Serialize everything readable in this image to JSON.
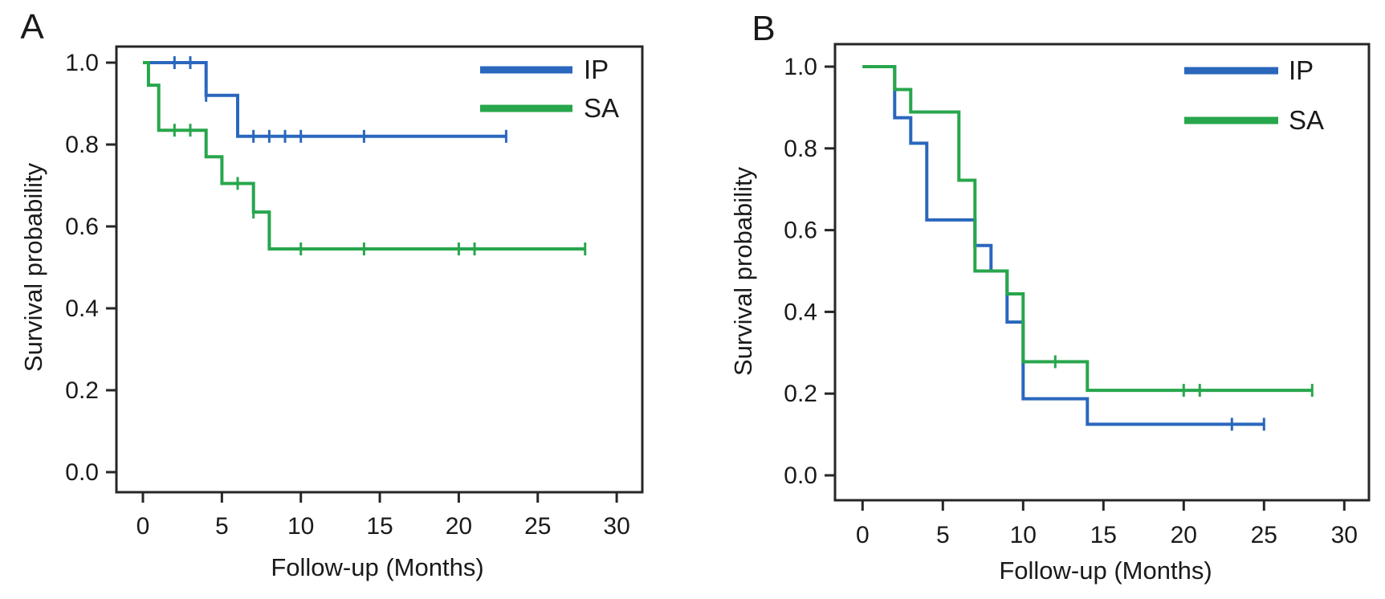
{
  "figure": {
    "description": "Kaplan-Meier survival curves, two panels",
    "panel_labels": [
      "A",
      "B"
    ],
    "legend_labels": [
      "IP",
      "SA"
    ]
  },
  "colors": {
    "ip": "#2a67bd",
    "sa": "#27a64c",
    "axis": "#262626",
    "text": "#1a1a1a"
  },
  "chart_data": [
    {
      "type": "line",
      "subtype": "kaplan-meier-step",
      "panel_label": "A",
      "xlabel": "Follow-up (Months)",
      "ylabel": "Survival probability",
      "xlim": [
        0,
        30
      ],
      "ylim": [
        0.0,
        1.0
      ],
      "x_ticks": [
        0,
        5,
        10,
        15,
        20,
        25,
        30
      ],
      "y_ticks": [
        1.0,
        0.8,
        0.6,
        0.4,
        0.2,
        0.0
      ],
      "y_tick_labels": [
        "1.0",
        "0.8",
        "0.6",
        "0.4",
        "0.2",
        "0.0"
      ],
      "grid": false,
      "legend_position": "top-right",
      "series": [
        {
          "name": "IP",
          "color_key": "ip",
          "steps": [
            [
              0,
              1.0
            ],
            [
              4,
              0.92
            ],
            [
              6,
              0.82
            ]
          ],
          "end_time": 23,
          "censors": [
            [
              2,
              1.0
            ],
            [
              3,
              1.0
            ],
            [
              4,
              0.92
            ],
            [
              7,
              0.82
            ],
            [
              8,
              0.82
            ],
            [
              9,
              0.82
            ],
            [
              10,
              0.82
            ],
            [
              14,
              0.82
            ],
            [
              23,
              0.82
            ]
          ]
        },
        {
          "name": "SA",
          "color_key": "sa",
          "steps": [
            [
              0,
              1.0
            ],
            [
              0.35,
              0.945
            ],
            [
              1,
              0.835
            ],
            [
              4,
              0.77
            ],
            [
              5,
              0.705
            ],
            [
              7,
              0.635
            ],
            [
              8,
              0.545
            ]
          ],
          "end_time": 28,
          "censors": [
            [
              2,
              0.835
            ],
            [
              3,
              0.835
            ],
            [
              6,
              0.705
            ],
            [
              7,
              0.635
            ],
            [
              10,
              0.545
            ],
            [
              14,
              0.545
            ],
            [
              20,
              0.545
            ],
            [
              21,
              0.545
            ],
            [
              28,
              0.545
            ]
          ]
        }
      ]
    },
    {
      "type": "line",
      "subtype": "kaplan-meier-step",
      "panel_label": "B",
      "xlabel": "Follow-up (Months)",
      "ylabel": "Survival probability",
      "xlim": [
        0,
        30
      ],
      "ylim": [
        0.0,
        1.0
      ],
      "x_ticks": [
        0,
        5,
        10,
        15,
        20,
        25,
        30
      ],
      "y_ticks": [
        1.0,
        0.8,
        0.6,
        0.4,
        0.2,
        0.0
      ],
      "y_tick_labels": [
        "1.0",
        "0.8",
        "0.6",
        "0.4",
        "0.2",
        "0.0"
      ],
      "grid": false,
      "legend_position": "top-right",
      "series": [
        {
          "name": "IP",
          "color_key": "ip",
          "steps": [
            [
              0,
              1.0
            ],
            [
              2,
              0.875
            ],
            [
              3,
              0.8125
            ],
            [
              4,
              0.625
            ],
            [
              7,
              0.5625
            ],
            [
              8,
              0.5
            ],
            [
              9,
              0.375
            ],
            [
              10,
              0.1875
            ],
            [
              14,
              0.125
            ]
          ],
          "end_time": 25,
          "censors": [
            [
              23,
              0.125
            ],
            [
              25,
              0.125
            ]
          ]
        },
        {
          "name": "SA",
          "color_key": "sa",
          "steps": [
            [
              0,
              1.0
            ],
            [
              2,
              0.944
            ],
            [
              3,
              0.889
            ],
            [
              6,
              0.722
            ],
            [
              7,
              0.5
            ],
            [
              9,
              0.444
            ],
            [
              10,
              0.278
            ],
            [
              14,
              0.208
            ]
          ],
          "end_time": 28,
          "censors": [
            [
              12,
              0.278
            ],
            [
              20,
              0.208
            ],
            [
              21,
              0.208
            ],
            [
              28,
              0.208
            ]
          ]
        }
      ]
    }
  ]
}
